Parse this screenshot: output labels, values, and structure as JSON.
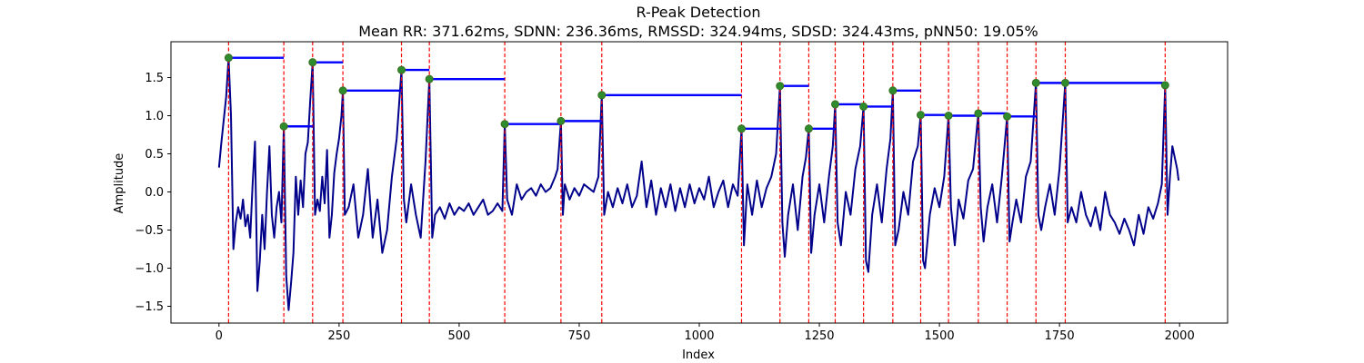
{
  "chart_data": {
    "type": "line",
    "title": "R-Peak Detection",
    "subtitle": "Mean RR: 371.62ms, SDNN: 236.36ms, RMSSD: 324.94ms, SDSD: 324.43ms, pNN50: 19.05%",
    "xlabel": "Index",
    "ylabel": "Amplitude",
    "xlim": [
      -100,
      2100
    ],
    "ylim": [
      -1.72,
      1.97
    ],
    "xticks": [
      0,
      250,
      500,
      750,
      1000,
      1250,
      1500,
      1750,
      2000
    ],
    "yticks": [
      -1.5,
      -1.0,
      -0.5,
      0.0,
      0.5,
      1.0,
      1.5
    ],
    "ytick_labels": [
      "−1.5",
      "−1.0",
      "−0.5",
      "0.0",
      "0.5",
      "1.0",
      "1.5"
    ],
    "grid": false,
    "colors": {
      "signal": "#00008b",
      "peak_line": "#ff0000",
      "rr_segment": "#0000ff",
      "peak_marker": "#2e8b2e"
    },
    "signal_points": [
      [
        0,
        0.32
      ],
      [
        5,
        0.65
      ],
      [
        10,
        0.95
      ],
      [
        15,
        1.25
      ],
      [
        20,
        1.76
      ],
      [
        25,
        1.0
      ],
      [
        30,
        -0.75
      ],
      [
        35,
        -0.4
      ],
      [
        40,
        -0.2
      ],
      [
        45,
        -0.35
      ],
      [
        50,
        -0.1
      ],
      [
        55,
        -0.45
      ],
      [
        60,
        -0.3
      ],
      [
        65,
        -0.6
      ],
      [
        70,
        0.1
      ],
      [
        75,
        0.66
      ],
      [
        80,
        -1.3
      ],
      [
        85,
        -0.9
      ],
      [
        90,
        -0.3
      ],
      [
        95,
        -0.75
      ],
      [
        100,
        0.0
      ],
      [
        105,
        0.6
      ],
      [
        110,
        -0.3
      ],
      [
        115,
        -0.6
      ],
      [
        120,
        -0.2
      ],
      [
        125,
        0.0
      ],
      [
        130,
        -0.4
      ],
      [
        135,
        0.86
      ],
      [
        140,
        -1.1
      ],
      [
        145,
        -1.55
      ],
      [
        150,
        -1.2
      ],
      [
        155,
        -0.8
      ],
      [
        160,
        0.2
      ],
      [
        165,
        -0.3
      ],
      [
        170,
        0.15
      ],
      [
        175,
        -0.2
      ],
      [
        180,
        0.5
      ],
      [
        185,
        0.65
      ],
      [
        190,
        1.2
      ],
      [
        195,
        1.7
      ],
      [
        200,
        -0.3
      ],
      [
        205,
        -0.1
      ],
      [
        210,
        -0.25
      ],
      [
        215,
        0.2
      ],
      [
        220,
        -0.15
      ],
      [
        225,
        0.55
      ],
      [
        230,
        -0.6
      ],
      [
        235,
        -0.3
      ],
      [
        240,
        0.25
      ],
      [
        245,
        0.5
      ],
      [
        250,
        0.7
      ],
      [
        255,
        1.0
      ],
      [
        258,
        1.33
      ],
      [
        262,
        -0.3
      ],
      [
        270,
        -0.2
      ],
      [
        280,
        0.1
      ],
      [
        290,
        -0.6
      ],
      [
        300,
        -0.3
      ],
      [
        305,
        0.0
      ],
      [
        310,
        0.3
      ],
      [
        320,
        -0.6
      ],
      [
        330,
        -0.1
      ],
      [
        340,
        -0.8
      ],
      [
        350,
        -0.5
      ],
      [
        360,
        0.2
      ],
      [
        370,
        0.7
      ],
      [
        380,
        1.6
      ],
      [
        385,
        -0.1
      ],
      [
        390,
        -0.4
      ],
      [
        400,
        0.1
      ],
      [
        410,
        -0.3
      ],
      [
        420,
        -0.6
      ],
      [
        430,
        0.4
      ],
      [
        438,
        1.48
      ],
      [
        444,
        -0.6
      ],
      [
        450,
        -0.3
      ],
      [
        460,
        -0.2
      ],
      [
        470,
        -0.35
      ],
      [
        480,
        -0.15
      ],
      [
        490,
        -0.3
      ],
      [
        500,
        -0.2
      ],
      [
        510,
        -0.25
      ],
      [
        520,
        -0.15
      ],
      [
        530,
        -0.3
      ],
      [
        540,
        -0.2
      ],
      [
        550,
        -0.1
      ],
      [
        560,
        -0.3
      ],
      [
        570,
        -0.25
      ],
      [
        580,
        -0.15
      ],
      [
        590,
        -0.25
      ],
      [
        595,
        0.89
      ],
      [
        600,
        -0.1
      ],
      [
        610,
        -0.3
      ],
      [
        620,
        0.1
      ],
      [
        630,
        -0.1
      ],
      [
        640,
        0.0
      ],
      [
        650,
        0.05
      ],
      [
        660,
        -0.05
      ],
      [
        670,
        0.1
      ],
      [
        680,
        0.0
      ],
      [
        690,
        0.05
      ],
      [
        700,
        0.2
      ],
      [
        705,
        0.3
      ],
      [
        712,
        0.93
      ],
      [
        716,
        -0.3
      ],
      [
        720,
        0.1
      ],
      [
        730,
        -0.1
      ],
      [
        740,
        0.05
      ],
      [
        750,
        -0.05
      ],
      [
        760,
        0.1
      ],
      [
        770,
        0.05
      ],
      [
        780,
        0.0
      ],
      [
        790,
        0.2
      ],
      [
        797,
        1.27
      ],
      [
        802,
        -0.3
      ],
      [
        810,
        0.0
      ],
      [
        820,
        -0.2
      ],
      [
        830,
        0.05
      ],
      [
        840,
        -0.15
      ],
      [
        850,
        0.1
      ],
      [
        860,
        -0.2
      ],
      [
        870,
        -0.05
      ],
      [
        880,
        0.4
      ],
      [
        890,
        -0.2
      ],
      [
        900,
        0.15
      ],
      [
        910,
        -0.3
      ],
      [
        920,
        0.05
      ],
      [
        930,
        -0.2
      ],
      [
        940,
        0.1
      ],
      [
        950,
        -0.25
      ],
      [
        960,
        0.05
      ],
      [
        970,
        -0.2
      ],
      [
        980,
        0.1
      ],
      [
        990,
        -0.15
      ],
      [
        1000,
        0.05
      ],
      [
        1010,
        -0.1
      ],
      [
        1020,
        0.2
      ],
      [
        1030,
        -0.2
      ],
      [
        1040,
        0.0
      ],
      [
        1050,
        0.15
      ],
      [
        1060,
        -0.2
      ],
      [
        1070,
        0.1
      ],
      [
        1080,
        -0.05
      ],
      [
        1088,
        0.83
      ],
      [
        1093,
        -0.7
      ],
      [
        1100,
        0.1
      ],
      [
        1110,
        -0.3
      ],
      [
        1120,
        0.15
      ],
      [
        1130,
        -0.2
      ],
      [
        1140,
        0.05
      ],
      [
        1150,
        0.2
      ],
      [
        1160,
        0.5
      ],
      [
        1168,
        1.39
      ],
      [
        1173,
        -0.4
      ],
      [
        1178,
        -0.85
      ],
      [
        1185,
        -0.3
      ],
      [
        1195,
        0.1
      ],
      [
        1205,
        -0.5
      ],
      [
        1215,
        0.2
      ],
      [
        1222,
        0.45
      ],
      [
        1228,
        0.83
      ],
      [
        1233,
        -0.8
      ],
      [
        1240,
        -0.3
      ],
      [
        1250,
        0.1
      ],
      [
        1260,
        -0.4
      ],
      [
        1270,
        0.2
      ],
      [
        1278,
        0.6
      ],
      [
        1283,
        1.15
      ],
      [
        1288,
        -0.4
      ],
      [
        1295,
        -0.7
      ],
      [
        1305,
        0.0
      ],
      [
        1315,
        -0.3
      ],
      [
        1325,
        0.3
      ],
      [
        1335,
        0.6
      ],
      [
        1342,
        1.12
      ],
      [
        1347,
        -0.9
      ],
      [
        1352,
        -1.05
      ],
      [
        1360,
        -0.3
      ],
      [
        1370,
        0.1
      ],
      [
        1380,
        -0.4
      ],
      [
        1390,
        0.3
      ],
      [
        1398,
        0.7
      ],
      [
        1403,
        1.33
      ],
      [
        1408,
        -0.7
      ],
      [
        1415,
        -0.5
      ],
      [
        1425,
        0.0
      ],
      [
        1435,
        -0.3
      ],
      [
        1445,
        0.4
      ],
      [
        1455,
        0.6
      ],
      [
        1461,
        1.01
      ],
      [
        1466,
        -0.9
      ],
      [
        1470,
        -1.0
      ],
      [
        1480,
        -0.3
      ],
      [
        1490,
        0.05
      ],
      [
        1500,
        -0.2
      ],
      [
        1510,
        0.2
      ],
      [
        1519,
        1.0
      ],
      [
        1524,
        -0.2
      ],
      [
        1532,
        -0.7
      ],
      [
        1540,
        -0.1
      ],
      [
        1550,
        -0.35
      ],
      [
        1560,
        0.15
      ],
      [
        1570,
        0.3
      ],
      [
        1581,
        1.03
      ],
      [
        1586,
        -0.2
      ],
      [
        1592,
        -0.65
      ],
      [
        1600,
        -0.2
      ],
      [
        1610,
        0.1
      ],
      [
        1620,
        -0.4
      ],
      [
        1630,
        0.2
      ],
      [
        1641,
        0.99
      ],
      [
        1646,
        -0.65
      ],
      [
        1652,
        -0.4
      ],
      [
        1660,
        -0.1
      ],
      [
        1670,
        -0.4
      ],
      [
        1680,
        0.2
      ],
      [
        1690,
        0.4
      ],
      [
        1701,
        1.43
      ],
      [
        1706,
        -0.3
      ],
      [
        1712,
        -0.5
      ],
      [
        1720,
        -0.2
      ],
      [
        1730,
        0.1
      ],
      [
        1740,
        -0.3
      ],
      [
        1750,
        0.3
      ],
      [
        1762,
        1.43
      ],
      [
        1767,
        -0.4
      ],
      [
        1775,
        -0.2
      ],
      [
        1785,
        -0.4
      ],
      [
        1795,
        0.0
      ],
      [
        1805,
        -0.3
      ],
      [
        1815,
        -0.45
      ],
      [
        1825,
        -0.2
      ],
      [
        1835,
        -0.5
      ],
      [
        1845,
        0.0
      ],
      [
        1855,
        -0.3
      ],
      [
        1865,
        -0.4
      ],
      [
        1875,
        -0.55
      ],
      [
        1885,
        -0.35
      ],
      [
        1895,
        -0.5
      ],
      [
        1905,
        -0.7
      ],
      [
        1915,
        -0.3
      ],
      [
        1925,
        -0.55
      ],
      [
        1935,
        -0.2
      ],
      [
        1945,
        -0.35
      ],
      [
        1955,
        -0.15
      ],
      [
        1963,
        0.1
      ],
      [
        1970,
        1.4
      ],
      [
        1975,
        -0.3
      ],
      [
        1980,
        0.2
      ],
      [
        1985,
        0.6
      ],
      [
        1990,
        0.45
      ],
      [
        1995,
        0.3
      ],
      [
        1998,
        0.15
      ]
    ],
    "r_peaks": [
      [
        20,
        1.76
      ],
      [
        135,
        0.86
      ],
      [
        195,
        1.7
      ],
      [
        258,
        1.33
      ],
      [
        380,
        1.6
      ],
      [
        438,
        1.48
      ],
      [
        595,
        0.89
      ],
      [
        712,
        0.93
      ],
      [
        797,
        1.27
      ],
      [
        1088,
        0.83
      ],
      [
        1168,
        1.39
      ],
      [
        1228,
        0.83
      ],
      [
        1283,
        1.15
      ],
      [
        1342,
        1.12
      ],
      [
        1403,
        1.33
      ],
      [
        1461,
        1.01
      ],
      [
        1519,
        1.0
      ],
      [
        1581,
        1.03
      ],
      [
        1641,
        0.99
      ],
      [
        1701,
        1.43
      ],
      [
        1762,
        1.43
      ],
      [
        1970,
        1.4
      ]
    ]
  }
}
